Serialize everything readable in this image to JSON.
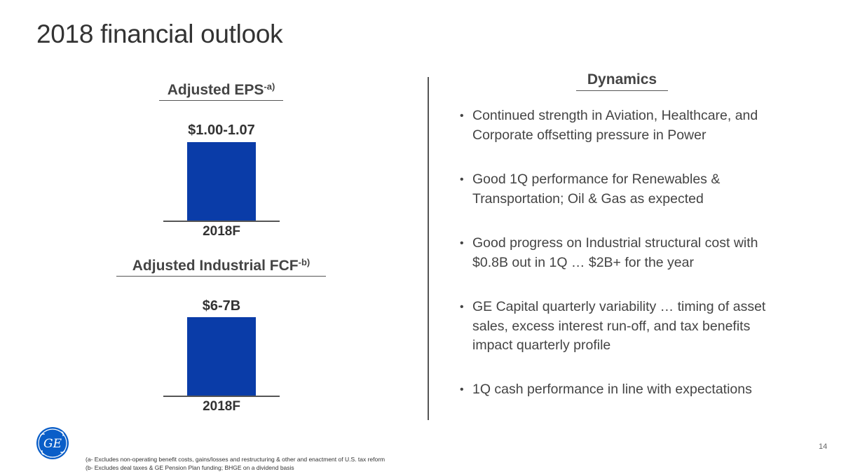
{
  "slide": {
    "title": "2018 financial outlook",
    "page_number": "14"
  },
  "eps": {
    "heading": "Adjusted EPS",
    "heading_sup": "-a)",
    "value_label": "$1.00-1.07",
    "category": "2018F"
  },
  "fcf": {
    "heading": "Adjusted Industrial FCF",
    "heading_sup": "-b)",
    "value_label": "$6-7B",
    "category": "2018F"
  },
  "chart_data": [
    {
      "type": "bar",
      "title": "Adjusted EPS-a)",
      "categories": [
        "2018F"
      ],
      "values": [
        "$1.00-1.07"
      ],
      "color": "#0a3ca8"
    },
    {
      "type": "bar",
      "title": "Adjusted Industrial FCF-b)",
      "categories": [
        "2018F"
      ],
      "values": [
        "$6-7B"
      ],
      "color": "#0a3ca8"
    }
  ],
  "dynamics": {
    "heading": "Dynamics",
    "bullets": [
      {
        "line1": "Continued strength in Aviation, Healthcare, and",
        "line2": "Corporate offsetting pressure in Power"
      },
      {
        "line1": "Good 1Q performance for Renewables &",
        "line2": "Transportation; Oil & Gas as expected"
      },
      {
        "line1": "Good progress on Industrial structural cost with",
        "line2": "$0.8B out in 1Q … $2B+ for the year"
      },
      {
        "line1": "GE Capital quarterly variability … timing of asset",
        "line2": "sales, excess interest run-off, and tax benefits",
        "line3": "impact quarterly profile"
      },
      {
        "line1": "1Q cash performance in line with expectations"
      }
    ]
  },
  "logo": {
    "text": "GE",
    "icon": "ge-monogram-icon",
    "color": "#0a5ec8"
  },
  "footnotes": {
    "a": "(a- Excludes non-operating benefit costs, gains/losses and restructuring & other and enactment of U.S. tax reform",
    "b": "(b- Excludes deal taxes & GE Pension Plan funding; BHGE on a dividend basis"
  }
}
